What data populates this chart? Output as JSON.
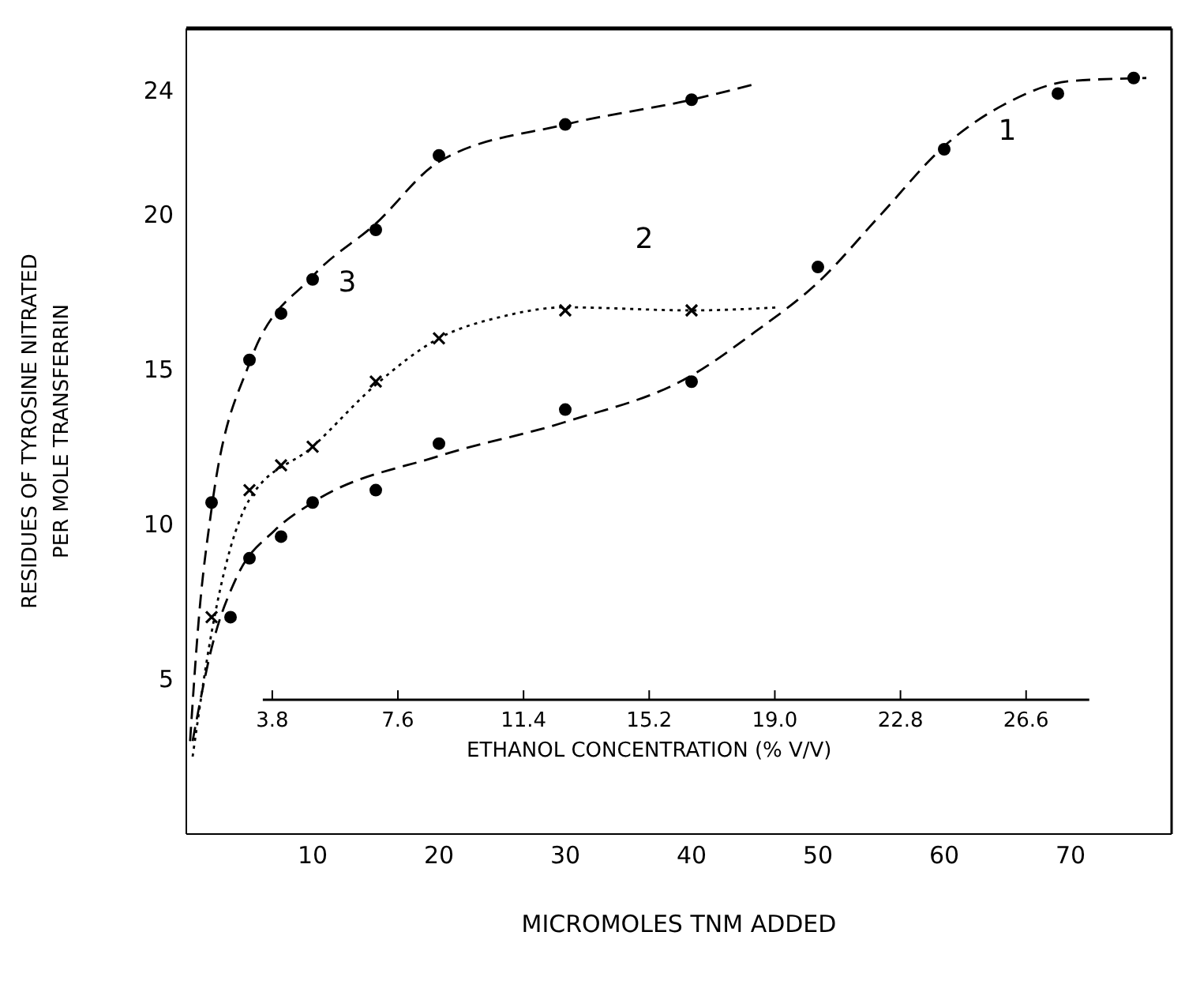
{
  "chart_data": {
    "type": "scatter",
    "xlabel": "MICROMOLES TNM ADDED",
    "ylabel": "RESIDUES OF TYROSINE NITRATED\nPER MOLE TRANSFERRIN",
    "x2label": "ETHANOL CONCENTRATION (% V/V)",
    "xlim": [
      0,
      78
    ],
    "xticks": [
      10,
      20,
      30,
      40,
      50,
      60,
      70
    ],
    "ylim": [
      0,
      26
    ],
    "yticks": [
      5,
      10,
      15,
      20,
      24
    ],
    "x2lim": [
      1.2,
      31.0
    ],
    "x2ticks": [
      3.8,
      7.6,
      11.4,
      15.2,
      {
        "value": 19,
        "label": "19.0"
      },
      22.8,
      26.6
    ],
    "grid": false,
    "legend": false,
    "series": [
      {
        "marker": "circle",
        "color": "#000000",
        "x": [
          3.5,
          5,
          7.5,
          10,
          15,
          20,
          30,
          40,
          50,
          60,
          69,
          75
        ],
        "values": [
          7.0,
          8.9,
          9.6,
          10.7,
          11.1,
          12.6,
          13.7,
          14.6,
          18.3,
          22.1,
          23.9,
          24.4
        ]
      },
      {
        "marker": "cross",
        "color": "#000000",
        "x": [
          2,
          5,
          7.5,
          10,
          15,
          20,
          30,
          40
        ],
        "values": [
          7.0,
          11.1,
          11.9,
          12.5,
          14.6,
          16.0,
          16.9,
          16.9
        ]
      },
      {
        "marker": "circle",
        "color": "#000000",
        "x": [
          2,
          5,
          7.5,
          10,
          15,
          20,
          30,
          40
        ],
        "values": [
          10.7,
          15.3,
          16.8,
          17.9,
          19.5,
          21.9,
          22.9,
          23.7
        ]
      },
      {
        "type": "line",
        "name": "1",
        "line_style": "dashed",
        "color": "#000000",
        "x": [
          0.5,
          2,
          4,
          7,
          10,
          20,
          30,
          40,
          45,
          50,
          55,
          60,
          65,
          70,
          76
        ],
        "values": [
          3,
          6,
          8.3,
          9.8,
          10.7,
          12.2,
          13.3,
          14.8,
          16.2,
          17.8,
          20,
          22.2,
          23.6,
          24.3,
          24.4
        ]
      },
      {
        "type": "line",
        "name": "2",
        "line_style": "dotted",
        "color": "#000000",
        "x": [
          0.5,
          2,
          5,
          10,
          15,
          20,
          25,
          30,
          40,
          47
        ],
        "values": [
          2.5,
          6.5,
          10.8,
          12.5,
          14.5,
          16,
          16.7,
          17,
          16.9,
          17
        ]
      },
      {
        "type": "line",
        "name": "3",
        "line_style": "dashed",
        "color": "#000000",
        "x": [
          0.3,
          1,
          2,
          5,
          10,
          15,
          20,
          30,
          40,
          45
        ],
        "values": [
          3,
          7,
          10.5,
          15.2,
          18,
          19.7,
          21.7,
          22.9,
          23.7,
          24.2
        ]
      }
    ]
  }
}
